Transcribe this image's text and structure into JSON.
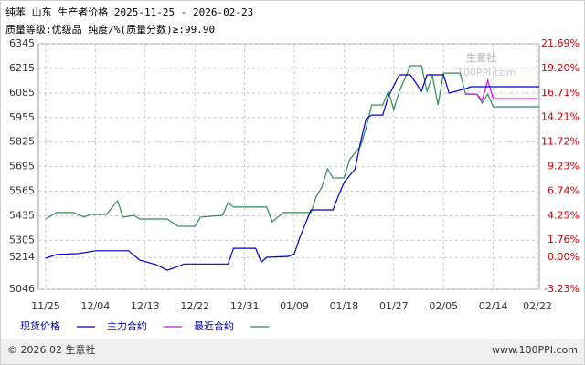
{
  "chart_data": {
    "type": "line",
    "title": "纯苯 山东 生产者价格 2025-11-25 - 2026-02-23",
    "subtitle": "质量等级:优级品 纯度/%(质量分数)≥:99.90",
    "watermark": "生意社",
    "watermark_sub": "100PPI.com",
    "xticks": [
      "11/25",
      "12/04",
      "12/13",
      "12/22",
      "12/31",
      "01/09",
      "01/18",
      "01/27",
      "02/05",
      "02/14",
      "02/22"
    ],
    "ylim": [
      5046,
      6345
    ],
    "yticks": [
      5046,
      5214,
      5305,
      5435,
      5565,
      5695,
      5825,
      5955,
      6085,
      6215,
      6345
    ],
    "y2lim": [
      -3.23,
      21.69
    ],
    "y2ticks": [
      {
        "value": -3.23,
        "label": "-3.23%"
      },
      {
        "value": 0,
        "label": "0.00%"
      },
      {
        "value": 1.76,
        "label": "1.76%"
      },
      {
        "value": 4.25,
        "label": "4.25%"
      },
      {
        "value": 6.74,
        "label": "6.74%"
      },
      {
        "value": 9.23,
        "label": "9.23%"
      },
      {
        "value": 11.72,
        "label": "11.72%"
      },
      {
        "value": 14.21,
        "label": "14.21%"
      },
      {
        "value": 16.71,
        "label": "16.71%"
      },
      {
        "value": 19.2,
        "label": "19.20%"
      },
      {
        "value": 21.69,
        "label": "21.69%"
      }
    ],
    "grid": true,
    "series": [
      {
        "name": "现货价格",
        "color": "#0000cc",
        "x": [
          "11/25",
          "11/27",
          "12/01",
          "12/04",
          "12/10",
          "12/12",
          "12/15",
          "12/17",
          "12/19",
          "12/20",
          "12/28",
          "12/29",
          "01/02",
          "01/03",
          "01/04",
          "01/08",
          "01/09",
          "01/10",
          "01/12",
          "01/16",
          "01/17",
          "01/18",
          "01/20",
          "01/21",
          "01/22",
          "01/23",
          "01/25",
          "01/26",
          "01/28",
          "01/30",
          "02/01",
          "02/02",
          "02/05",
          "02/06",
          "02/09",
          "02/10",
          "02/23"
        ],
        "values": [
          5210,
          5230,
          5235,
          5250,
          5250,
          5200,
          5176,
          5147,
          5167,
          5180,
          5180,
          5263,
          5263,
          5190,
          5215,
          5220,
          5234,
          5321,
          5466,
          5466,
          5543,
          5611,
          5683,
          5828,
          5949,
          5968,
          5968,
          6065,
          6181,
          6181,
          6094,
          6181,
          6181,
          6084,
          6108,
          6118,
          6118
        ]
      },
      {
        "name": "主力合约",
        "color": "#e000e0",
        "x": [
          "02/09",
          "02/11",
          "02/12",
          "02/13",
          "02/14",
          "02/22"
        ],
        "values": [
          6079,
          6079,
          6046,
          6152,
          6055,
          6055
        ]
      },
      {
        "name": "最近合约",
        "color": "#2e8b57",
        "x": [
          "11/25",
          "11/27",
          "11/30",
          "12/02",
          "12/03",
          "12/06",
          "12/08",
          "12/09",
          "12/11",
          "12/12",
          "12/17",
          "12/19",
          "12/22",
          "12/23",
          "12/27",
          "12/28",
          "12/29",
          "01/04",
          "01/05",
          "01/06",
          "01/07",
          "01/12",
          "01/13",
          "01/14",
          "01/15",
          "01/16",
          "01/18",
          "01/19",
          "01/21",
          "01/22",
          "01/23",
          "01/25",
          "01/26",
          "01/27",
          "01/28",
          "01/30",
          "02/01",
          "02/02",
          "02/03",
          "02/04",
          "02/05",
          "02/08",
          "02/09",
          "02/11",
          "02/12",
          "02/13",
          "02/14",
          "02/23"
        ],
        "values": [
          5418,
          5452,
          5452,
          5428,
          5442,
          5442,
          5514,
          5428,
          5437,
          5418,
          5418,
          5379,
          5379,
          5428,
          5437,
          5505,
          5481,
          5481,
          5403,
          5428,
          5452,
          5452,
          5539,
          5587,
          5683,
          5635,
          5635,
          5732,
          5804,
          5901,
          6021,
          6021,
          6094,
          5997,
          6094,
          6229,
          6229,
          6094,
          6176,
          6021,
          6190,
          6190,
          6079,
          6079,
          6031,
          6079,
          6012,
          6012
        ]
      }
    ]
  },
  "footer": {
    "copyright": "© 2026.02 生意社",
    "site": "www.100PPI.com"
  }
}
